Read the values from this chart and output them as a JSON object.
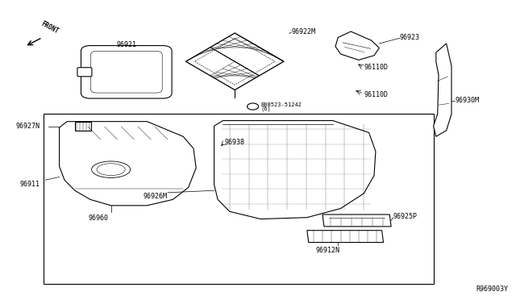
{
  "title": "",
  "background_color": "#ffffff",
  "line_color": "#000000",
  "ref_code": "R969003Y",
  "front_label": "FRONT",
  "bolt_label1": "B08523-51242",
  "bolt_label2": "(6)",
  "figsize": [
    6.4,
    3.72
  ],
  "dpi": 100
}
